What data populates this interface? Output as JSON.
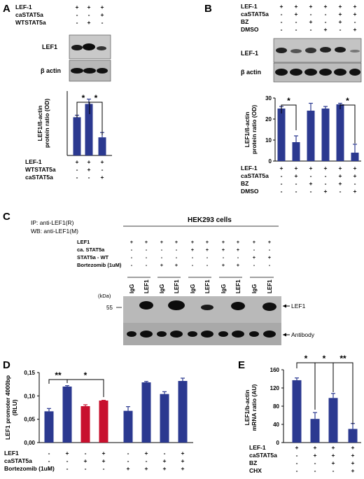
{
  "panels": {
    "A": {
      "letter": "A",
      "top_rows": [
        {
          "label": "LEF-1",
          "signs": [
            "+",
            "+",
            "+"
          ]
        },
        {
          "label": "caSTAT5a",
          "signs": [
            "-",
            "-",
            "+"
          ]
        },
        {
          "label": "WTSTAT5a",
          "signs": [
            "-",
            "+",
            "-"
          ]
        }
      ],
      "blot_labels": [
        "LEF1",
        "β actin"
      ],
      "bottom_rows": [
        {
          "label": "LEF-1",
          "signs": [
            "+",
            "+",
            "+"
          ]
        },
        {
          "label": "WTSTAT5a",
          "signs": [
            "-",
            "+",
            "-"
          ]
        },
        {
          "label": "caSTAT5a",
          "signs": [
            "-",
            "-",
            "+"
          ]
        }
      ],
      "star": "*"
    },
    "B": {
      "letter": "B",
      "top_rows": [
        {
          "label": "LEF-1",
          "signs": [
            "+",
            "+",
            "+",
            "+",
            "+",
            "+"
          ]
        },
        {
          "label": "caSTAT5a",
          "signs": [
            "-",
            "+",
            "-",
            "-",
            "+",
            "+"
          ]
        },
        {
          "label": "BZ",
          "signs": [
            "-",
            "-",
            "+",
            "-",
            "+",
            "-"
          ]
        },
        {
          "label": "DMSO",
          "signs": [
            "-",
            "-",
            "-",
            "+",
            "-",
            "+"
          ]
        }
      ],
      "blot_labels": [
        "LEF-1",
        "β actin"
      ],
      "bottom_rows": [
        {
          "label": "LEF-1",
          "signs": [
            "+",
            "+",
            "+",
            "+",
            "+",
            "+"
          ]
        },
        {
          "label": "caSTAT5a",
          "signs": [
            "-",
            "+",
            "-",
            "-",
            "+",
            "+"
          ]
        },
        {
          "label": "BZ",
          "signs": [
            "-",
            "-",
            "+",
            "-",
            "+",
            "-"
          ]
        },
        {
          "label": "DMSO",
          "signs": [
            "-",
            "-",
            "-",
            "+",
            "-",
            "+"
          ]
        }
      ],
      "star": "*"
    },
    "C": {
      "letter": "C",
      "ip_line": "IP: anti-LEF1(R)",
      "wb_line": "WB: anti-LEF1(M)",
      "title": "HEK293 cells",
      "rows": [
        {
          "label": "LEF1",
          "signs": [
            "+",
            "+",
            "+",
            "+",
            "+",
            "+",
            "+",
            "+",
            "+",
            "+"
          ]
        },
        {
          "label": "ca. STAT5a",
          "signs": [
            "-",
            "-",
            "-",
            "-",
            "+",
            "+",
            "+",
            "+",
            "-",
            "-"
          ]
        },
        {
          "label": "STAT5a - WT",
          "signs": [
            "-",
            "-",
            "-",
            "-",
            "-",
            "-",
            "-",
            "-",
            "+",
            "+"
          ]
        },
        {
          "label": "Bortezomib (1uM)",
          "signs": [
            "-",
            "-",
            "+",
            "+",
            "-",
            "-",
            "+",
            "+",
            "-",
            "-"
          ]
        }
      ],
      "lanes": [
        "IgG",
        "LEF1",
        "IgG",
        "LEF1",
        "IgG",
        "LEF1",
        "IgG",
        "LEF1",
        "IgG",
        "LEF1"
      ],
      "kda_label": "(kDa)",
      "kda_marker": "55",
      "band_labels": [
        "LEF1",
        "Antibody"
      ]
    },
    "D": {
      "letter": "D",
      "rows": [
        {
          "label": "LEF1",
          "signs": [
            "-",
            "+",
            "-",
            "+",
            "-",
            "+",
            "-",
            "+"
          ]
        },
        {
          "label": "caSTAT5a",
          "signs": [
            "-",
            "-",
            "+",
            "+",
            "-",
            "-",
            "+",
            "+"
          ]
        },
        {
          "label": "Bortezomib (1uM)",
          "signs": [
            "-",
            "-",
            "-",
            "-",
            "+",
            "+",
            "+",
            "+"
          ]
        }
      ],
      "stars": [
        "**",
        "*"
      ]
    },
    "E": {
      "letter": "E",
      "rows": [
        {
          "label": "LEF-1",
          "signs": [
            "+",
            "+",
            "+",
            "+"
          ]
        },
        {
          "label": "caSTAT5a",
          "signs": [
            "-",
            "+",
            "+",
            "+"
          ]
        },
        {
          "label": "BZ",
          "signs": [
            "-",
            "-",
            "+",
            "+"
          ]
        },
        {
          "label": "CHX",
          "signs": [
            "-",
            "-",
            "-",
            "+"
          ]
        }
      ],
      "stars": [
        "*",
        "*",
        "**"
      ]
    }
  },
  "colors": {
    "navy": "#2b3990",
    "red": "#c8102e",
    "gel": "#b4b4b4"
  },
  "chart_data": [
    {
      "panel": "A",
      "type": "bar",
      "ylabel": "LEF1/ß-actin protein ratio (OD)",
      "ylim": [
        0,
        1.6
      ],
      "yticks": [],
      "categories": [
        "LEF-1",
        "LEF-1 + WTSTAT5a",
        "LEF-1 + caSTAT5a"
      ],
      "values": [
        0.95,
        1.28,
        0.45
      ],
      "errors": [
        0.05,
        0.12,
        0.12
      ],
      "colors": [
        "#2b3990",
        "#2b3990",
        "#2b3990"
      ]
    },
    {
      "panel": "B",
      "type": "bar",
      "ylabel": "LEF1/ß-actin protein ratio (OD)",
      "ylim": [
        0,
        30
      ],
      "yticks": [
        "0",
        "10",
        "20",
        "30"
      ],
      "categories": [
        "1",
        "2",
        "3",
        "4",
        "5",
        "6"
      ],
      "values": [
        25,
        9,
        24,
        25,
        27,
        4
      ],
      "errors": [
        1,
        3,
        3.5,
        1,
        0.5,
        4
      ],
      "colors": [
        "#2b3990",
        "#2b3990",
        "#2b3990",
        "#2b3990",
        "#2b3990",
        "#2b3990"
      ]
    },
    {
      "panel": "D",
      "type": "bar",
      "ylabel": "LEF1 promoter 4000bp (RLU)",
      "ylim": [
        0,
        0.15
      ],
      "yticks": [
        "0,00",
        "0,05",
        "0,10",
        "0,15"
      ],
      "categories": [
        "1",
        "2",
        "3",
        "4",
        "5",
        "6",
        "7",
        "8"
      ],
      "values": [
        0.067,
        0.12,
        0.078,
        0.09,
        0.068,
        0.129,
        0.104,
        0.132
      ],
      "errors": [
        0.006,
        0.002,
        0.003,
        0.0005,
        0.009,
        0.002,
        0.005,
        0.006
      ],
      "colors": [
        "#2b3990",
        "#2b3990",
        "#c8102e",
        "#c8102e",
        "#2b3990",
        "#2b3990",
        "#2b3990",
        "#2b3990"
      ]
    },
    {
      "panel": "E",
      "type": "bar",
      "ylabel": "LEF1/b-actin mRNA ratio (AU)",
      "ylim": [
        0,
        160
      ],
      "yticks": [
        "0",
        "40",
        "80",
        "120",
        "160"
      ],
      "categories": [
        "1",
        "2",
        "3",
        "4"
      ],
      "values": [
        137,
        52,
        98,
        30
      ],
      "errors": [
        5,
        14,
        10,
        12
      ],
      "colors": [
        "#2b3990",
        "#2b3990",
        "#2b3990",
        "#2b3990"
      ]
    }
  ]
}
